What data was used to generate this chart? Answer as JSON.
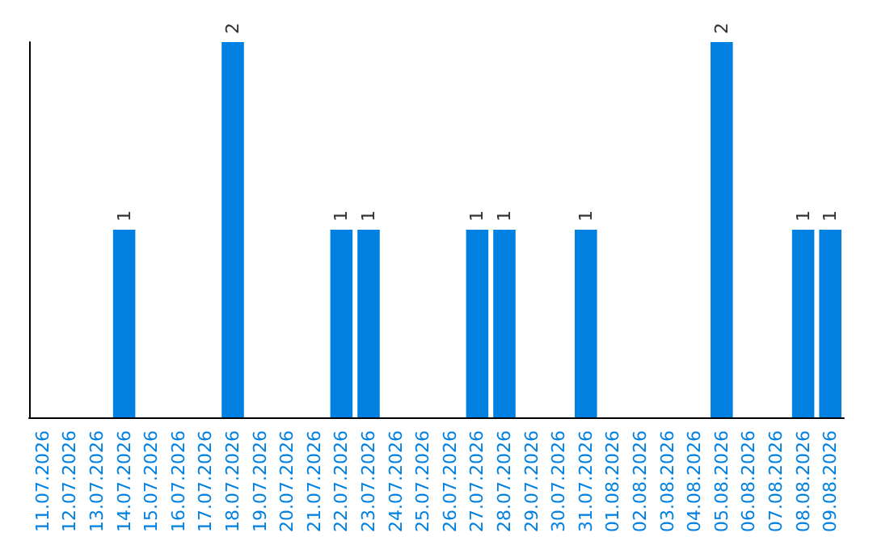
{
  "chart_data": {
    "type": "bar",
    "categories": [
      "11.07.2026",
      "12.07.2026",
      "13.07.2026",
      "14.07.2026",
      "15.07.2026",
      "16.07.2026",
      "17.07.2026",
      "18.07.2026",
      "19.07.2026",
      "20.07.2026",
      "21.07.2026",
      "22.07.2026",
      "23.07.2026",
      "24.07.2026",
      "25.07.2026",
      "26.07.2026",
      "27.07.2026",
      "28.07.2026",
      "29.07.2026",
      "30.07.2026",
      "31.07.2026",
      "01.08.2026",
      "02.08.2026",
      "03.08.2026",
      "04.08.2026",
      "05.08.2026",
      "06.08.2026",
      "07.08.2026",
      "08.08.2026",
      "09.08.2026"
    ],
    "values": [
      0,
      0,
      0,
      1,
      0,
      0,
      0,
      2,
      0,
      0,
      0,
      1,
      1,
      0,
      0,
      0,
      1,
      1,
      0,
      0,
      1,
      0,
      0,
      0,
      0,
      2,
      0,
      0,
      1,
      1
    ],
    "value_labels": [
      null,
      null,
      null,
      "1",
      null,
      null,
      null,
      "2",
      null,
      null,
      null,
      "1",
      "1",
      null,
      null,
      null,
      "1",
      "1",
      null,
      null,
      "1",
      null,
      null,
      null,
      null,
      "2",
      null,
      null,
      "1",
      "1"
    ],
    "color": "#0080e0"
  }
}
